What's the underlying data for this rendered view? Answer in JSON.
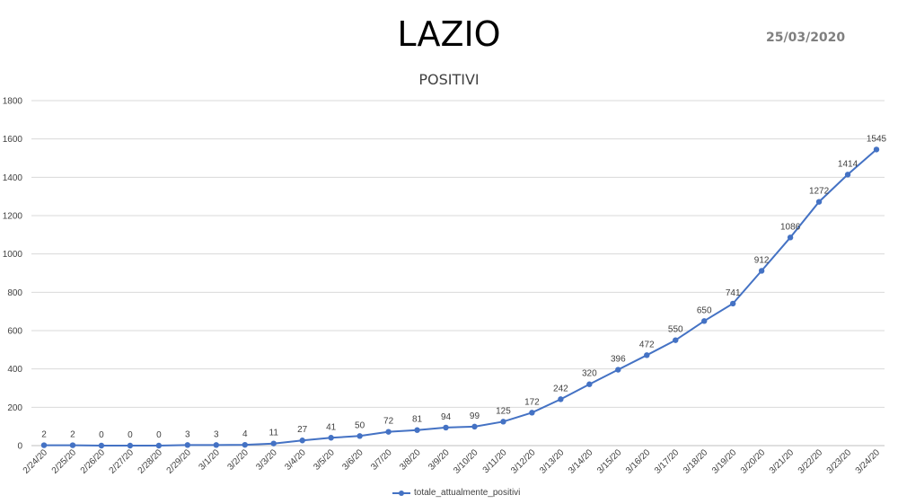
{
  "header": {
    "title": "LAZIO",
    "date": "25/03/2020",
    "subtitle": "POSITIVI"
  },
  "colors": {
    "series": "#4472c4",
    "grid": "#d9d9d9",
    "text": "#404040"
  },
  "chart_data": {
    "type": "line",
    "title": "LAZIO",
    "subtitle": "POSITIVI",
    "xlabel": "",
    "ylabel": "",
    "ylim": [
      0,
      1800
    ],
    "yticks": [
      0,
      200,
      400,
      600,
      800,
      1000,
      1200,
      1400,
      1600,
      1800
    ],
    "grid": true,
    "legend_position": "bottom",
    "categories": [
      "2/24/20",
      "2/25/20",
      "2/26/20",
      "2/27/20",
      "2/28/20",
      "2/29/20",
      "3/1/20",
      "3/2/20",
      "3/3/20",
      "3/4/20",
      "3/5/20",
      "3/6/20",
      "3/7/20",
      "3/8/20",
      "3/9/20",
      "3/10/20",
      "3/11/20",
      "3/12/20",
      "3/13/20",
      "3/14/20",
      "3/15/20",
      "3/16/20",
      "3/17/20",
      "3/18/20",
      "3/19/20",
      "3/20/20",
      "3/21/20",
      "3/22/20",
      "3/23/20",
      "3/24/20"
    ],
    "series": [
      {
        "name": "totale_attualmente_positivi",
        "values": [
          2,
          2,
          0,
          0,
          0,
          3,
          3,
          4,
          11,
          27,
          41,
          50,
          72,
          81,
          94,
          99,
          125,
          172,
          242,
          320,
          396,
          472,
          550,
          650,
          741,
          912,
          1086,
          1272,
          1414,
          1545
        ]
      }
    ]
  }
}
